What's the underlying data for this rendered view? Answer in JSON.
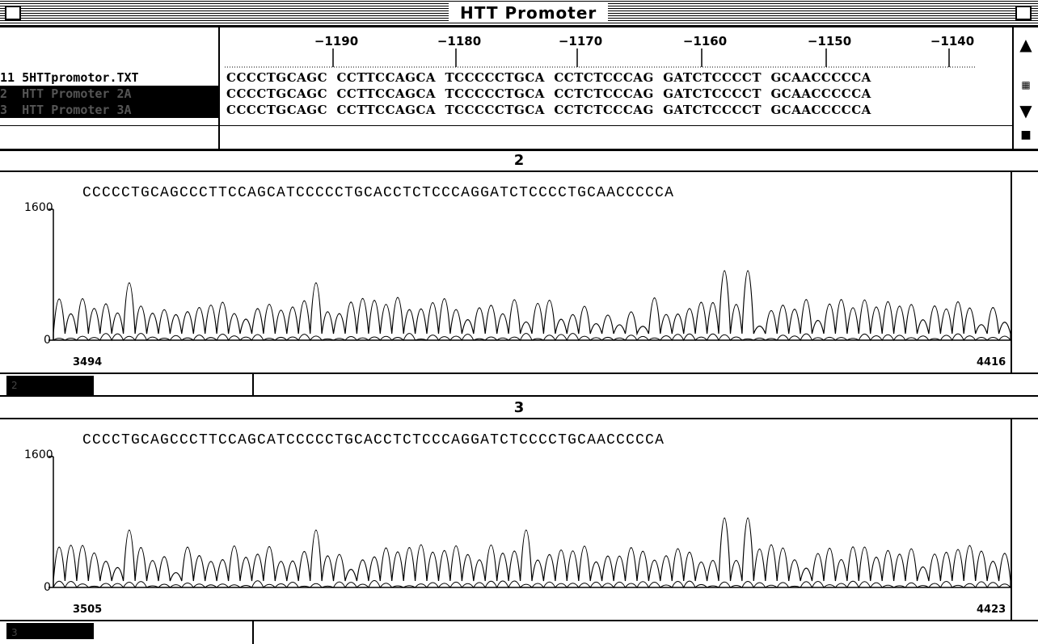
{
  "window": {
    "title": "HTT Promoter"
  },
  "alignment": {
    "ruler_ticks": [
      {
        "label": "−1190"
      },
      {
        "label": "−1180"
      },
      {
        "label": "−1170"
      },
      {
        "label": "−1160"
      },
      {
        "label": "−1150"
      },
      {
        "label": "−1140"
      }
    ],
    "rows": [
      {
        "name": "11 5HTTpromotor.TXT",
        "seq": "CCCCTGCAGC  CCTTCCAGCA  TCCCCCTGCA  CCTCTCCCAG  GATCTCCCCT  GCAACCCCCA",
        "selected": false
      },
      {
        "name": "2  HTT Promoter 2A",
        "seq": "CCCCTGCAGC  CCTTCCAGCA  TCCCCCTGCA  CCTCTCCCAG  GATCTCCCCT  GCAACCCCCA",
        "selected": true
      },
      {
        "name": "3  HTT Promoter 3A",
        "seq": "CCCCTGCAGC  CCTTCCAGCA  TCCCCCTGCA  CCTCTCCCAG  GATCTCCCCT  GCAACCCCCA",
        "selected": true
      }
    ]
  },
  "traces": [
    {
      "number": "2",
      "bases": "CCCCCTGCAGCCCTTCCAGCATCCCCCTGCACCTCTCCCAGGATCTCCCCTGCAACCCCCA",
      "ymax_label": "1600",
      "ymin_label": "0",
      "x_start": "3494",
      "x_end": "4416",
      "scroll_label": "2"
    },
    {
      "number": "3",
      "bases": "CCCCTGCAGCCCTTCCAGCATCCCCCTGCACCTCTCCCAGGATCTCCCCTGCAACCCCCA",
      "ymax_label": "1600",
      "ymin_label": "0",
      "x_start": "3505",
      "x_end": "4423",
      "scroll_label": "3"
    }
  ]
}
